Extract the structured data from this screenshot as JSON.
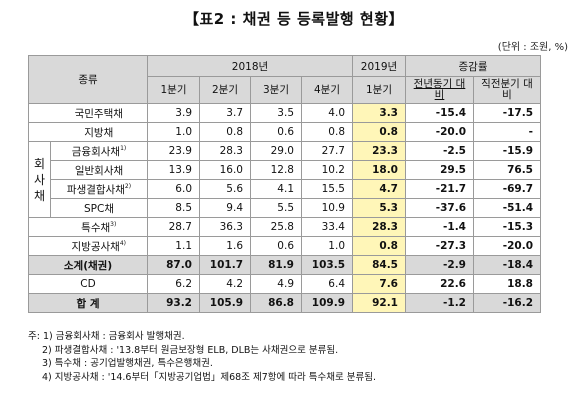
{
  "title": "【표2 : 채권 등 등록발행 현황】",
  "unit": "(단위 : 조원, %)",
  "header": {
    "category": "종류",
    "year_2018": "2018년",
    "year_2019": "2019년",
    "growth": "증감률",
    "quarters_2018": [
      "1분기",
      "2분기",
      "3분기",
      "4분기"
    ],
    "quarter_2019": "1분기",
    "yoy": "전년동기 대비",
    "qoq": "직전분기 대비"
  },
  "group_label": "회사채",
  "rows": [
    {
      "label": "국민주택채",
      "sup": "",
      "v2018": [
        "3.9",
        "3.7",
        "3.5",
        "4.0"
      ],
      "v2019": "3.3",
      "yoy": "-15.4",
      "qoq": "-17.5"
    },
    {
      "label": "지방채",
      "sup": "",
      "v2018": [
        "1.0",
        "0.8",
        "0.6",
        "0.8"
      ],
      "v2019": "0.8",
      "yoy": "-20.0",
      "qoq": "-"
    },
    {
      "label": "금융회사채",
      "sup": "1)",
      "v2018": [
        "23.9",
        "28.3",
        "29.0",
        "27.7"
      ],
      "v2019": "23.3",
      "yoy": "-2.5",
      "qoq": "-15.9"
    },
    {
      "label": "일반회사채",
      "sup": "",
      "v2018": [
        "13.9",
        "16.0",
        "12.8",
        "10.2"
      ],
      "v2019": "18.0",
      "yoy": "29.5",
      "qoq": "76.5"
    },
    {
      "label": "파생결합사채",
      "sup": "2)",
      "v2018": [
        "6.0",
        "5.6",
        "4.1",
        "15.5"
      ],
      "v2019": "4.7",
      "yoy": "-21.7",
      "qoq": "-69.7"
    },
    {
      "label": "SPC채",
      "sup": "",
      "v2018": [
        "8.5",
        "9.4",
        "5.5",
        "10.9"
      ],
      "v2019": "5.3",
      "yoy": "-37.6",
      "qoq": "-51.4"
    },
    {
      "label": "특수채",
      "sup": "3)",
      "v2018": [
        "28.7",
        "36.3",
        "25.8",
        "33.4"
      ],
      "v2019": "28.3",
      "yoy": "-1.4",
      "qoq": "-15.3"
    },
    {
      "label": "지방공사채",
      "sup": "4)",
      "v2018": [
        "1.1",
        "1.6",
        "0.6",
        "1.0"
      ],
      "v2019": "0.8",
      "yoy": "-27.3",
      "qoq": "-20.0"
    }
  ],
  "subtotal": {
    "label": "소계(채권)",
    "v2018": [
      "87.0",
      "101.7",
      "81.9",
      "103.5"
    ],
    "v2019": "84.5",
    "yoy": "-2.9",
    "qoq": "-18.4"
  },
  "cd": {
    "label": "CD",
    "v2018": [
      "6.2",
      "4.2",
      "4.9",
      "6.4"
    ],
    "v2019": "7.6",
    "yoy": "22.6",
    "qoq": "18.8"
  },
  "total": {
    "label": "합 계",
    "v2018": [
      "93.2",
      "105.9",
      "86.8",
      "109.9"
    ],
    "v2019": "92.1",
    "yoy": "-1.2",
    "qoq": "-16.2"
  },
  "notes": [
    "주: 1) 금융회사채 : 금융회사 발행채권.",
    "2) 파생결합사채 : '13.8부터 원금보장형 ELB, DLB는 사채권으로 분류됨.",
    "3) 특수채 : 공기업발행채권, 특수은행채권.",
    "4) 지방공사채 : '14.6부터「지방공기업법」제68조 제7항에 따라 특수채로 분류됨."
  ]
}
